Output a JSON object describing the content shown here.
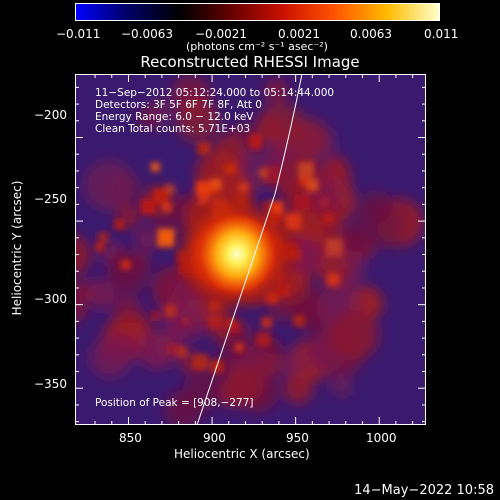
{
  "colorbar": {
    "tick_labels": [
      "−0.011",
      "−0.0063",
      "−0.0021",
      "0.0021",
      "0.0063",
      "0.011"
    ],
    "unit_label": "(photons cm⁻² s⁻¹ asec⁻²)",
    "stops": [
      "#0000ff",
      "#000066",
      "#000000",
      "#660000",
      "#cc1100",
      "#ff5500",
      "#ffbb00",
      "#ffffcc"
    ]
  },
  "title": "Reconstructed RHESSI Image",
  "annotations": {
    "line1": "11−Sep−2012 05:12:24.000 to 05:14:44.000",
    "line2": "Detectors: 3F 5F 6F 7F 8F, Att 0",
    "line3": "Energy Range: 6.0 − 12.0 keV",
    "line4": "Clean    Total counts: 5.71E+03",
    "peak": "Position of Peak = [908,−277]"
  },
  "axes": {
    "x_label": "Heliocentric X (arcsec)",
    "y_label": "Heliocentric Y (arcsec)",
    "x_ticks": [
      "850",
      "900",
      "950",
      "1000"
    ],
    "y_ticks": [
      "−200",
      "−250",
      "−300",
      "−350"
    ],
    "x_range": [
      818,
      1028
    ],
    "y_range": [
      -372,
      -162
    ]
  },
  "image": {
    "peak_position": [
      908,
      -277
    ],
    "colors": {
      "background": "#3a1a6e",
      "core": "#ffff99",
      "emission": "#d83010"
    }
  },
  "timestamp": "14−May−2022 10:58"
}
